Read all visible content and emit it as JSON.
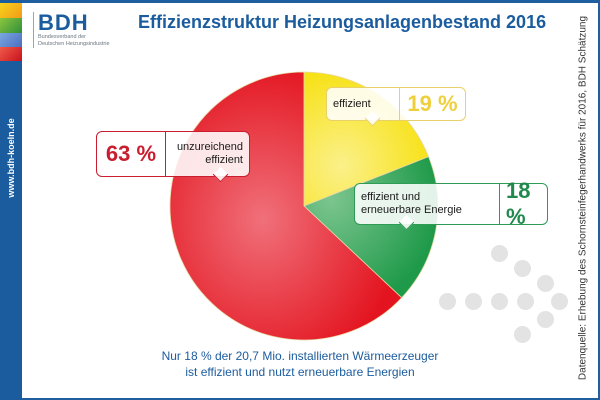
{
  "sidebar": {
    "url": "www.bdh-koeln.de"
  },
  "logo": {
    "name": "BDH",
    "subtitle_line1": "Bundesverband der",
    "subtitle_line2": "Deutschen Heizungsindustrie"
  },
  "source": "Datenquelle: Erhebung des Schornsteinfegerhandwerks für 2016, BDH Schätzung",
  "caption": {
    "line1": "Nur 18 % der 20,7 Mio. installierten Wärmeerzeuger",
    "line2": "ist effizient und nutzt erneuerbare Energien"
  },
  "chart_data": {
    "type": "pie",
    "title": "Effizienzstruktur Heizungsanlagenbestand 2016",
    "slices": [
      {
        "label": "effizient",
        "value": 19,
        "value_label": "19 %",
        "color": "#f7e21a"
      },
      {
        "label": "effizient und erneuerbare Energie",
        "label_line1": "effizient und",
        "label_line2": "erneuerbare Energie",
        "value": 18,
        "value_label": "18 %",
        "color": "#1f9a4a"
      },
      {
        "label": "unzureichend effizient",
        "label_line1": "unzureichend",
        "label_line2": "effizient",
        "value": 63,
        "value_label": "63 %",
        "color": "#e3141f"
      }
    ],
    "start_angle_deg": 0,
    "direction": "clockwise"
  }
}
